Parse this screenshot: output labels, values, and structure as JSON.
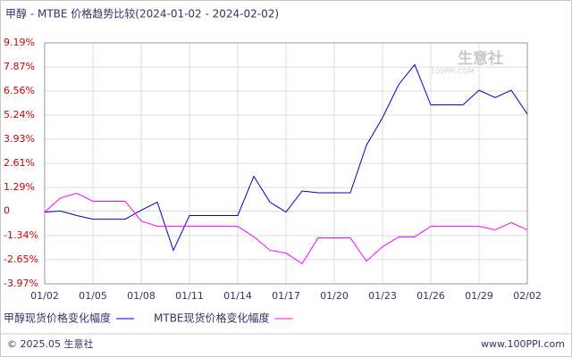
{
  "chart_data": {
    "type": "line",
    "title": "甲醇 - MTBE 价格趋势比较(2024-01-02 - 2024-02-02)",
    "categories": [
      "01/02",
      null,
      null,
      "01/05",
      null,
      null,
      "01/08",
      null,
      null,
      "01/11",
      null,
      null,
      "01/14",
      null,
      null,
      "01/17",
      null,
      null,
      "01/20",
      null,
      null,
      "01/23",
      null,
      null,
      "01/26",
      null,
      null,
      "01/29",
      null,
      null,
      "02/02"
    ],
    "series": [
      {
        "name": "甲醇现货价格变化幅度",
        "color": "#0000cc",
        "values": [
          -0.05,
          0.0,
          -0.24,
          -0.44,
          -0.44,
          -0.44,
          0.05,
          0.49,
          -2.14,
          -0.24,
          -0.24,
          -0.24,
          -0.24,
          1.9,
          0.49,
          -0.05,
          1.1,
          1.0,
          1.0,
          1.0,
          3.6,
          5.1,
          6.9,
          8.0,
          5.8,
          5.8,
          5.8,
          6.6,
          6.2,
          6.6,
          5.3
        ]
      },
      {
        "name": "MTBE现货价格变化幅度",
        "color": "#ff00ff",
        "values": [
          -0.05,
          0.73,
          0.97,
          0.54,
          0.54,
          0.54,
          -0.54,
          -0.83,
          -0.83,
          -0.83,
          -0.83,
          -0.83,
          -0.83,
          -1.4,
          -2.14,
          -2.29,
          -2.87,
          -1.46,
          -1.46,
          -1.46,
          -2.73,
          -1.95,
          -1.41,
          -1.41,
          -0.83,
          -0.83,
          -0.83,
          -0.83,
          -1.02,
          -0.63,
          -1.02
        ]
      }
    ],
    "ylim": [
      -3.97,
      9.19
    ],
    "yticks": [
      {
        "value": 9.19,
        "label": "9.19%"
      },
      {
        "value": 7.87,
        "label": "7.87%"
      },
      {
        "value": 6.56,
        "label": "6.56%"
      },
      {
        "value": 5.24,
        "label": "5.24%"
      },
      {
        "value": 3.93,
        "label": "3.93%"
      },
      {
        "value": 2.61,
        "label": "2.61%"
      },
      {
        "value": 1.29,
        "label": "1.29%"
      },
      0,
      {
        "value": -1.34,
        "label": "-1.34%"
      },
      {
        "value": -2.65,
        "label": "-2.65%"
      },
      {
        "value": -3.97,
        "label": "-3.97%"
      }
    ],
    "grid": true,
    "watermark": [
      "生意社",
      "100PPI.COM"
    ],
    "footer": {
      "left": "© 2025.05 生意社",
      "right": "www.100PPI.com"
    }
  }
}
